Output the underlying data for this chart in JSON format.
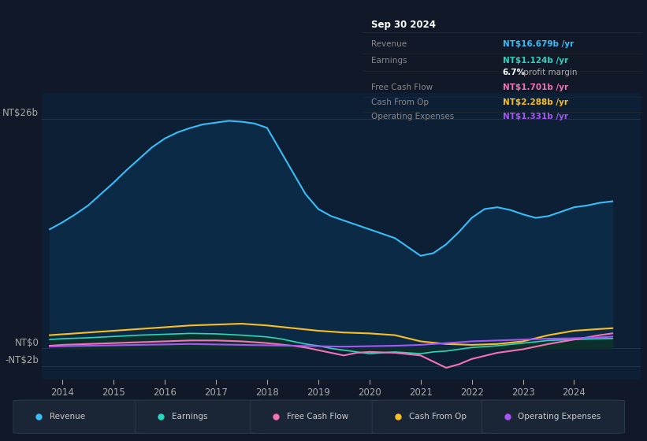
{
  "bg_color": "#111827",
  "plot_bg_color": "#0d1f35",
  "title_date": "Sep 30 2024",
  "tooltip_bg": "#0a0a0a",
  "tooltip_border": "#2a2a2a",
  "tooltip": {
    "Revenue": {
      "label": "Revenue",
      "value": "NT$16.679b",
      "unit": " /yr",
      "color": "#38bdf8"
    },
    "Earnings": {
      "label": "Earnings",
      "value": "NT$1.124b",
      "unit": " /yr",
      "color": "#2dd4bf"
    },
    "profit_margin_pct": "6.7%",
    "Free Cash Flow": {
      "label": "Free Cash Flow",
      "value": "NT$1.701b",
      "unit": " /yr",
      "color": "#f472b6"
    },
    "Cash From Op": {
      "label": "Cash From Op",
      "value": "NT$2.288b",
      "unit": " /yr",
      "color": "#fbbf24"
    },
    "Operating Expenses": {
      "label": "Operating Expenses",
      "value": "NT$1.331b",
      "unit": " /yr",
      "color": "#a855f7"
    }
  },
  "ylim": [
    -3.5,
    29
  ],
  "xlim": [
    2013.6,
    2025.3
  ],
  "xticks": [
    2014,
    2015,
    2016,
    2017,
    2018,
    2019,
    2020,
    2021,
    2022,
    2023,
    2024
  ],
  "ytick_values": [
    26,
    0,
    -2
  ],
  "ytick_labels": [
    "NT$26b",
    "NT$0",
    "-NT$2b"
  ],
  "revenue_x": [
    2013.75,
    2014.0,
    2014.25,
    2014.5,
    2014.75,
    2015.0,
    2015.25,
    2015.5,
    2015.75,
    2016.0,
    2016.25,
    2016.5,
    2016.75,
    2017.0,
    2017.25,
    2017.5,
    2017.75,
    2018.0,
    2018.25,
    2018.5,
    2018.75,
    2019.0,
    2019.25,
    2019.5,
    2019.75,
    2020.0,
    2020.25,
    2020.5,
    2020.75,
    2021.0,
    2021.25,
    2021.5,
    2021.75,
    2022.0,
    2022.25,
    2022.5,
    2022.75,
    2023.0,
    2023.25,
    2023.5,
    2023.75,
    2024.0,
    2024.25,
    2024.5,
    2024.75
  ],
  "revenue_y": [
    13.5,
    14.3,
    15.2,
    16.2,
    17.5,
    18.8,
    20.2,
    21.5,
    22.8,
    23.8,
    24.5,
    25.0,
    25.4,
    25.6,
    25.8,
    25.7,
    25.5,
    25.0,
    22.5,
    20.0,
    17.5,
    15.8,
    15.0,
    14.5,
    14.0,
    13.5,
    13.0,
    12.5,
    11.5,
    10.5,
    10.8,
    11.8,
    13.2,
    14.8,
    15.8,
    16.0,
    15.7,
    15.2,
    14.8,
    15.0,
    15.5,
    16.0,
    16.2,
    16.5,
    16.679
  ],
  "earnings_x": [
    2013.75,
    2014.0,
    2014.5,
    2015.0,
    2015.5,
    2016.0,
    2016.5,
    2017.0,
    2017.5,
    2018.0,
    2018.25,
    2018.5,
    2018.75,
    2019.0,
    2019.25,
    2019.5,
    2019.75,
    2020.0,
    2020.25,
    2020.5,
    2020.75,
    2021.0,
    2021.25,
    2021.5,
    2021.75,
    2022.0,
    2022.5,
    2023.0,
    2023.5,
    2024.0,
    2024.5,
    2024.75
  ],
  "earnings_y": [
    1.0,
    1.1,
    1.2,
    1.35,
    1.5,
    1.6,
    1.7,
    1.65,
    1.5,
    1.3,
    1.1,
    0.8,
    0.5,
    0.3,
    0.0,
    -0.2,
    -0.4,
    -0.6,
    -0.5,
    -0.4,
    -0.5,
    -0.6,
    -0.4,
    -0.3,
    -0.1,
    0.1,
    0.3,
    0.6,
    0.9,
    1.0,
    1.1,
    1.124
  ],
  "cashfromop_x": [
    2013.75,
    2014.0,
    2014.5,
    2015.0,
    2015.5,
    2016.0,
    2016.5,
    2017.0,
    2017.5,
    2018.0,
    2018.5,
    2019.0,
    2019.5,
    2020.0,
    2020.5,
    2021.0,
    2021.5,
    2022.0,
    2022.5,
    2023.0,
    2023.5,
    2024.0,
    2024.5,
    2024.75
  ],
  "cashfromop_y": [
    1.5,
    1.6,
    1.8,
    2.0,
    2.2,
    2.4,
    2.6,
    2.7,
    2.8,
    2.6,
    2.3,
    2.0,
    1.8,
    1.7,
    1.5,
    0.8,
    0.5,
    0.4,
    0.5,
    0.8,
    1.5,
    2.0,
    2.2,
    2.288
  ],
  "freecashflow_x": [
    2013.75,
    2014.0,
    2014.5,
    2015.0,
    2015.5,
    2016.0,
    2016.5,
    2017.0,
    2017.5,
    2018.0,
    2018.5,
    2018.75,
    2019.0,
    2019.25,
    2019.5,
    2019.75,
    2020.0,
    2020.5,
    2021.0,
    2021.25,
    2021.5,
    2021.75,
    2022.0,
    2022.5,
    2023.0,
    2023.5,
    2024.0,
    2024.5,
    2024.75
  ],
  "freecashflow_y": [
    0.3,
    0.4,
    0.5,
    0.6,
    0.7,
    0.8,
    0.9,
    0.9,
    0.8,
    0.6,
    0.3,
    0.1,
    -0.2,
    -0.5,
    -0.8,
    -0.5,
    -0.4,
    -0.5,
    -0.8,
    -1.5,
    -2.2,
    -1.8,
    -1.2,
    -0.5,
    -0.1,
    0.5,
    1.0,
    1.5,
    1.701
  ],
  "opex_x": [
    2013.75,
    2014.0,
    2014.5,
    2015.0,
    2015.5,
    2016.0,
    2016.5,
    2017.0,
    2017.5,
    2018.0,
    2018.5,
    2019.0,
    2019.5,
    2020.0,
    2020.5,
    2021.0,
    2021.5,
    2022.0,
    2022.5,
    2023.0,
    2023.5,
    2024.0,
    2024.5,
    2024.75
  ],
  "opex_y": [
    0.2,
    0.25,
    0.3,
    0.35,
    0.4,
    0.45,
    0.5,
    0.45,
    0.4,
    0.35,
    0.3,
    0.25,
    0.2,
    0.25,
    0.3,
    0.4,
    0.6,
    0.8,
    0.9,
    1.0,
    1.1,
    1.15,
    1.25,
    1.331
  ],
  "revenue_line_color": "#38bdf8",
  "revenue_fill_color": "#0a2a45",
  "earnings_line_color": "#2dd4bf",
  "earnings_fill_color": "#0d3028",
  "cashfromop_line_color": "#fbbf24",
  "freecashflow_line_color": "#f472b6",
  "opex_line_color": "#a855f7",
  "grid_line_color": "#1e3550",
  "zero_line_color": "#2a4a6a",
  "label_color": "#aaaaaa",
  "legend_items": [
    "Revenue",
    "Earnings",
    "Free Cash Flow",
    "Cash From Op",
    "Operating Expenses"
  ],
  "legend_colors": [
    "#38bdf8",
    "#2dd4bf",
    "#f472b6",
    "#fbbf24",
    "#a855f7"
  ],
  "legend_bg": "#1a2535",
  "legend_border": "#2a3a4a"
}
